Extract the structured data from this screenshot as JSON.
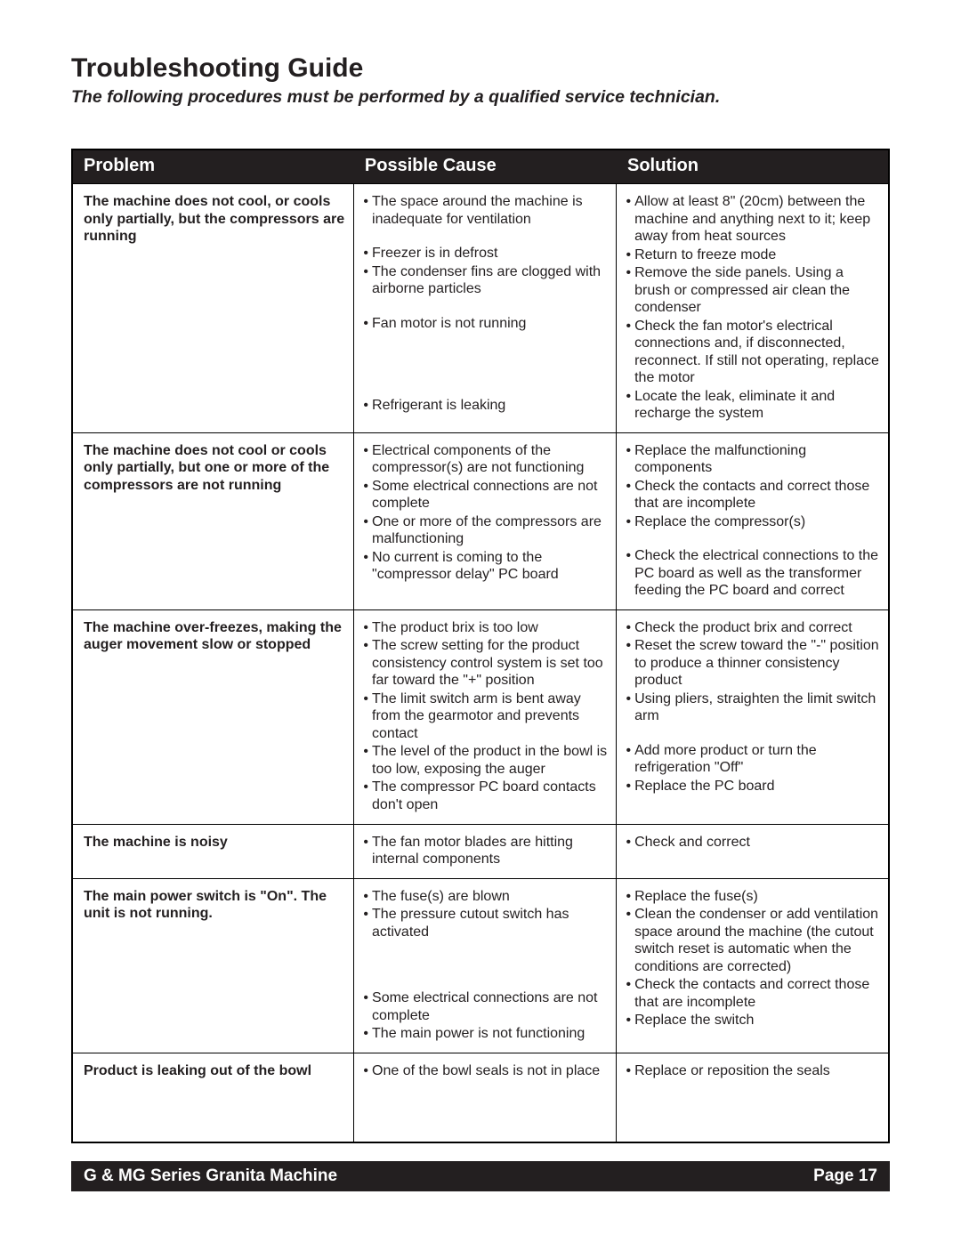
{
  "title": "Troubleshooting Guide",
  "subtitle": "The following procedures must be performed by a qualified service technician.",
  "headers": {
    "problem": "Problem",
    "cause": "Possible Cause",
    "solution": "Solution"
  },
  "rows": [
    {
      "problem": "The machine does not cool, or cools only partially, but the compressors are running",
      "causes": [
        {
          "text": "The space around the machine is inadequate for ventilation",
          "after_gap": true
        },
        {
          "text": "Freezer is in defrost"
        },
        {
          "text": "The condenser fins are clogged with airborne particles",
          "after_gap": true
        },
        {
          "text": "Fan motor is not running",
          "after_gap_lines": 4
        },
        {
          "text": "Refrigerant is leaking"
        }
      ],
      "solutions": [
        {
          "text": "Allow at least 8\" (20cm) between the machine and anything next to it; keep away from heat sources"
        },
        {
          "text": "Return to freeze mode"
        },
        {
          "text": "Remove the side panels. Using a brush or compressed air clean the condenser"
        },
        {
          "text": "Check the fan motor's electrical connections and, if disconnected, reconnect. If still not operating, replace the motor"
        },
        {
          "text": "Locate the leak, eliminate it and recharge the system"
        }
      ]
    },
    {
      "problem": "The machine does not cool or cools only partially, but one or more of the compressors are not running",
      "causes": [
        {
          "text": "Electrical components of the compressor(s) are not functioning"
        },
        {
          "text": "Some electrical connections are not complete"
        },
        {
          "text": "One or more of the compressors are malfunctioning"
        },
        {
          "text": "No current is coming to the \"compressor delay\" PC board"
        }
      ],
      "solutions": [
        {
          "text": "Replace the malfunctioning components"
        },
        {
          "text": "Check the contacts and correct those that are incomplete"
        },
        {
          "text": "Replace the compressor(s)",
          "after_gap": true
        },
        {
          "text": "Check the electrical connections to the PC board as well as the transformer feeding the PC board and correct"
        }
      ]
    },
    {
      "problem": "The machine over-freezes, making the auger movement slow or stopped",
      "causes": [
        {
          "text": "The product brix is too low"
        },
        {
          "text": "The screw setting for the product consistency control system is set too far toward the \"+\" position"
        },
        {
          "text": "The limit switch arm is bent away from the gearmotor and prevents contact"
        },
        {
          "text": "The level of the product in the bowl is too low, exposing the auger"
        },
        {
          "text": "The compressor PC board contacts don't open"
        }
      ],
      "solutions": [
        {
          "text": "Check the product brix and correct"
        },
        {
          "text": "Reset the screw toward the \"-\" position to produce a thinner consistency product"
        },
        {
          "text": "Using pliers, straighten the limit switch arm",
          "after_gap": true
        },
        {
          "text": "Add more product or turn the refrigeration \"Off\""
        },
        {
          "text": "Replace the PC board"
        }
      ]
    },
    {
      "problem": "The machine is noisy",
      "causes": [
        {
          "text": "The fan motor blades are hitting internal components"
        }
      ],
      "solutions": [
        {
          "text": "Check and correct"
        }
      ]
    },
    {
      "problem": "The main power switch is \"On\". The unit is not running.",
      "causes": [
        {
          "text": "The fuse(s) are blown"
        },
        {
          "text": "The pressure cutout switch has activated",
          "after_gap_lines": 3
        },
        {
          "text": "Some electrical connections are not complete"
        },
        {
          "text": "The main power is not functioning"
        }
      ],
      "solutions": [
        {
          "text": "Replace the fuse(s)"
        },
        {
          "text": "Clean the condenser or add ventilation space around the machine (the cutout switch reset is automatic when the conditions are corrected)"
        },
        {
          "text": "Check the contacts and correct those that are incomplete"
        },
        {
          "text": "Replace the switch"
        }
      ]
    },
    {
      "problem": "Product is leaking out of the bowl",
      "causes": [
        {
          "text": "One of the bowl seals is not in place"
        }
      ],
      "solutions": [
        {
          "text": "Replace or reposition the seals"
        }
      ],
      "extra_height": 70
    }
  ],
  "footer": {
    "left": "G & MG Series Granita Machine",
    "right": "Page 17"
  }
}
